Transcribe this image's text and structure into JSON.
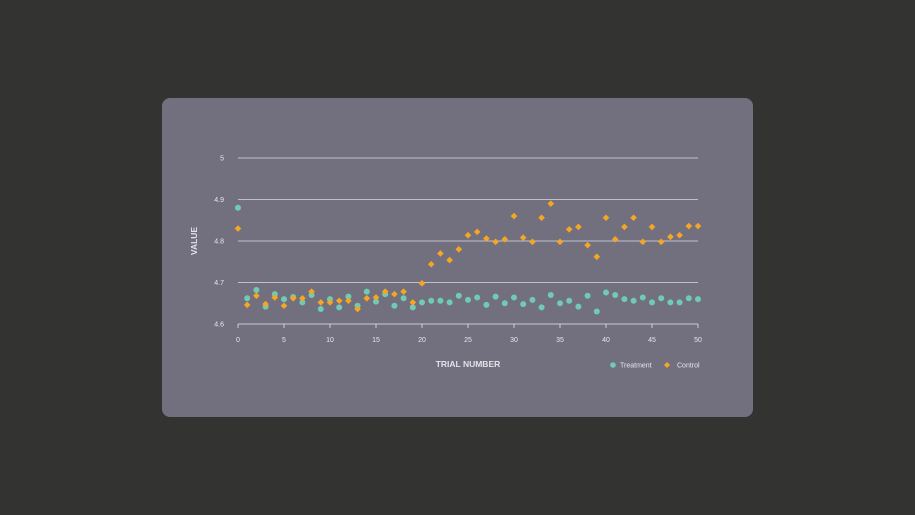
{
  "chart_data": {
    "type": "scatter",
    "title": "",
    "xlabel": "TRIAL NUMBER",
    "ylabel": "VALUE",
    "xlim": [
      0,
      50
    ],
    "ylim": [
      4.6,
      5.0
    ],
    "xticks": [
      0,
      5,
      10,
      15,
      20,
      25,
      30,
      35,
      40,
      45,
      50
    ],
    "yticks": [
      4.6,
      4.7,
      4.8,
      4.9,
      5.0
    ],
    "ytick_labels": [
      "4.6",
      "4.7",
      "4.8",
      "4.9",
      "5"
    ],
    "grid": "horizontal",
    "legend_position": "bottom-right",
    "series": [
      {
        "name": "Treatment",
        "marker": "circle",
        "color": "#6fcbb4",
        "x": [
          0,
          1,
          2,
          3,
          4,
          5,
          6,
          7,
          8,
          9,
          10,
          11,
          12,
          13,
          14,
          15,
          16,
          17,
          18,
          19,
          20,
          21,
          22,
          23,
          24,
          25,
          26,
          27,
          28,
          29,
          30,
          31,
          32,
          33,
          34,
          35,
          36,
          37,
          38,
          39,
          40,
          41,
          42,
          43,
          44,
          45,
          46,
          47,
          48,
          49,
          50
        ],
        "y": [
          4.88,
          4.662,
          4.682,
          4.642,
          4.672,
          4.66,
          4.665,
          4.652,
          4.67,
          4.636,
          4.66,
          4.64,
          4.666,
          4.644,
          4.678,
          4.654,
          4.672,
          4.644,
          4.662,
          4.64,
          4.652,
          4.656,
          4.656,
          4.652,
          4.668,
          4.658,
          4.664,
          4.646,
          4.666,
          4.65,
          4.664,
          4.648,
          4.658,
          4.64,
          4.67,
          4.65,
          4.656,
          4.642,
          4.668,
          4.63,
          4.676,
          4.67,
          4.66,
          4.656,
          4.664,
          4.652,
          4.662,
          4.652,
          4.652,
          4.662,
          4.66
        ]
      },
      {
        "name": "Control",
        "marker": "diamond",
        "color": "#f5a623",
        "x": [
          0,
          1,
          2,
          3,
          4,
          5,
          6,
          7,
          8,
          9,
          10,
          11,
          12,
          13,
          14,
          15,
          16,
          17,
          18,
          19,
          20,
          21,
          22,
          23,
          24,
          25,
          26,
          27,
          28,
          29,
          30,
          31,
          32,
          33,
          34,
          35,
          36,
          37,
          38,
          39,
          40,
          41,
          42,
          43,
          44,
          45,
          46,
          47,
          48,
          49,
          50
        ],
        "y": [
          4.83,
          4.646,
          4.668,
          4.648,
          4.664,
          4.644,
          4.662,
          4.662,
          4.678,
          4.652,
          4.652,
          4.656,
          4.656,
          4.636,
          4.662,
          4.664,
          4.678,
          4.672,
          4.678,
          4.652,
          4.698,
          4.744,
          4.77,
          4.754,
          4.78,
          4.814,
          4.822,
          4.806,
          4.798,
          4.804,
          4.86,
          4.808,
          4.798,
          4.856,
          4.89,
          4.798,
          4.828,
          4.834,
          4.79,
          4.762,
          4.856,
          4.804,
          4.834,
          4.856,
          4.798,
          4.834,
          4.798,
          4.81,
          4.814,
          4.836,
          4.836
        ]
      }
    ]
  }
}
